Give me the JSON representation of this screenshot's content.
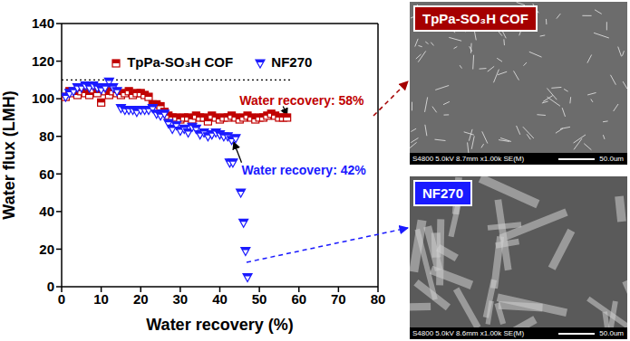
{
  "chart_data": {
    "type": "scatter",
    "x_label": "Water recovery (%)",
    "y_label": "Water flux (LMH)",
    "xlim": [
      0,
      80
    ],
    "xticks": [
      0,
      10,
      20,
      30,
      40,
      50,
      60,
      70,
      80
    ],
    "ylim": [
      0,
      140
    ],
    "yticks": [
      0,
      20,
      40,
      60,
      80,
      100,
      120,
      140
    ],
    "grid": false,
    "legend": "top",
    "reference_line": {
      "y": 110,
      "x": [
        0,
        58
      ],
      "line_style": "dotted",
      "color": "#000000"
    },
    "series": [
      {
        "name": "TpPa-SO₃H COF",
        "color": "#c00000",
        "marker": "square",
        "x": [
          1,
          2,
          3,
          4,
          5,
          6,
          7,
          8,
          9,
          10,
          11,
          12,
          13,
          14,
          15,
          16,
          17,
          18,
          19,
          20,
          21,
          22,
          23,
          24,
          25,
          26,
          27,
          28,
          29,
          30,
          31,
          32,
          33,
          34,
          35,
          36,
          37,
          38,
          39,
          40,
          41,
          42,
          43,
          44,
          45,
          46,
          47,
          48,
          49,
          50,
          51,
          52,
          53,
          54,
          55,
          56,
          57
        ],
        "values": [
          101,
          104,
          103,
          102,
          104,
          103,
          102,
          105,
          103,
          98,
          104,
          102,
          104,
          103,
          102,
          103,
          104,
          102,
          103,
          103,
          102,
          101,
          97,
          97,
          96,
          93,
          91,
          90,
          90,
          89,
          90,
          90,
          89,
          91,
          90,
          90,
          88,
          91,
          90,
          89,
          90,
          90,
          91,
          90,
          89,
          90,
          91,
          90,
          89,
          90,
          90,
          91,
          92,
          91,
          90,
          90,
          90
        ]
      },
      {
        "name": "NF270",
        "color": "#1a1aff",
        "marker": "triangle-down",
        "x": [
          1,
          2,
          3,
          4,
          5,
          6,
          7,
          8,
          9,
          10,
          11,
          12,
          13,
          14,
          15,
          16,
          17,
          18,
          19,
          20,
          21,
          22,
          23,
          24,
          25,
          26,
          27,
          28,
          29,
          30,
          31,
          32,
          33,
          34,
          35,
          36,
          37,
          38,
          39,
          40,
          41,
          42,
          42.5,
          43,
          43.3,
          44,
          45.3,
          46,
          46.5,
          47
        ],
        "values": [
          101,
          103,
          104,
          106,
          106,
          107,
          106,
          107,
          106,
          105,
          106,
          109,
          106,
          104,
          95,
          94,
          94,
          94,
          93,
          94,
          94,
          94,
          95,
          92,
          91,
          92,
          87,
          84,
          86,
          83,
          84,
          82,
          85,
          84,
          81,
          82,
          80,
          81,
          82,
          81,
          80,
          80,
          66,
          78,
          66,
          79,
          50,
          34,
          19,
          5
        ]
      }
    ],
    "annotations": [
      {
        "text": "Water recovery: 58%",
        "color": "#c00000",
        "x": 45,
        "y": 99,
        "arrow_from": [
          56,
          96
        ],
        "arrow_to": [
          57,
          91
        ]
      },
      {
        "text": "Water recovery: 42%",
        "color": "#1a1aff",
        "x": 45.5,
        "y": 62,
        "arrow_from": [
          45.5,
          66
        ],
        "arrow_to": [
          43.5,
          77
        ]
      }
    ]
  },
  "images": [
    {
      "label": "TpPa-SO₃H COF",
      "label_color": "#a50000",
      "caption": "S4800 5.0kV 8.7mm x1.00k SE(M)",
      "scale": "50.0um"
    },
    {
      "label": "NF270",
      "label_color": "#1a1aff",
      "caption": "S4800 5.0kV 8.6mm x1.00k SE(M)",
      "scale": "50.0um"
    }
  ]
}
